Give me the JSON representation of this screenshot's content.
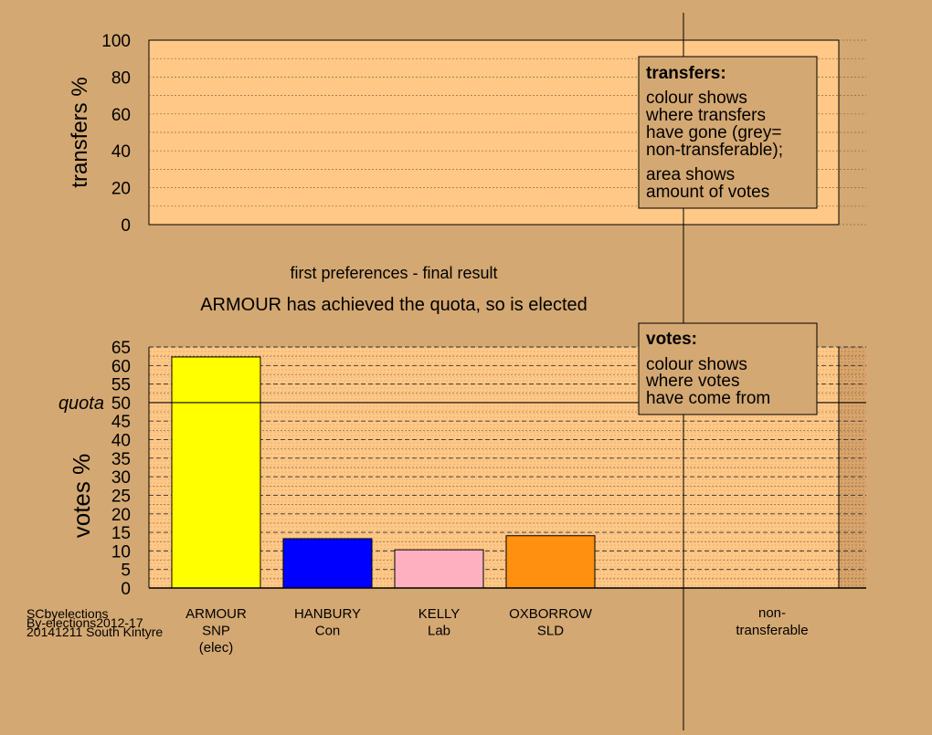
{
  "chart_data": [
    {
      "type": "bar",
      "ylabel": "transfers %",
      "ylim": [
        0,
        100
      ],
      "yticks": [
        0,
        20,
        40,
        60,
        80,
        100
      ],
      "categories": [],
      "values": [],
      "legend": {
        "title": "transfers:",
        "lines1": [
          "colour shows",
          "where transfers",
          "have gone (grey=",
          "non-transferable);"
        ],
        "lines2": [
          "area shows",
          "amount of votes"
        ]
      }
    },
    {
      "type": "bar",
      "title": "first preferences - final result",
      "subtitle": "ARMOUR has achieved the quota, so is elected",
      "ylabel": "votes %",
      "ylim": [
        0,
        65
      ],
      "yticks": [
        0,
        5,
        10,
        15,
        20,
        25,
        30,
        35,
        40,
        45,
        50,
        55,
        60,
        65
      ],
      "quota": {
        "value": 50,
        "label": "quota"
      },
      "categories": [
        [
          "ARMOUR",
          "SNP",
          "(elec)"
        ],
        [
          "HANBURY",
          "Con"
        ],
        [
          "KELLY",
          "Lab"
        ],
        [
          "OXBORROW",
          "SLD"
        ]
      ],
      "values": [
        62.3,
        13.3,
        10.3,
        14.1
      ],
      "colors": [
        "#FFFF00",
        "#0000FF",
        "#FFB0C0",
        "#FF9010"
      ],
      "nontransferable_label": [
        "non-",
        "transferable"
      ],
      "legend": {
        "title": "votes:",
        "lines": [
          "colour shows",
          "where votes",
          "have come from"
        ]
      }
    }
  ],
  "footer": {
    "line1": "SCbyelections",
    "line2": "By-elections2012-17",
    "line3": "20141211 South Kintyre"
  }
}
